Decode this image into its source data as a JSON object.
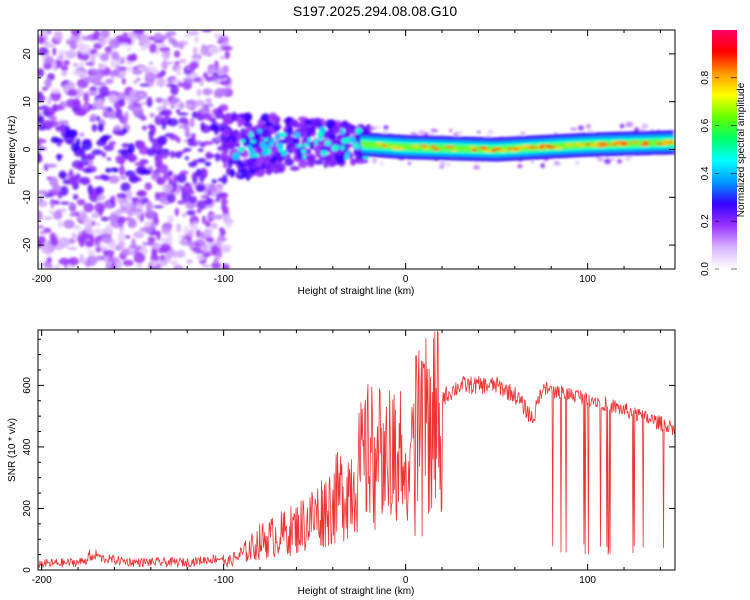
{
  "title": "S197.2025.294.08.08.G10",
  "chart_data": [
    {
      "type": "heatmap",
      "xlabel": "Height of straight line (km)",
      "ylabel": "Frequency (Hz)",
      "xlim": [
        -202,
        148
      ],
      "ylim": [
        -25,
        25
      ],
      "xticks": [
        -200,
        -100,
        0,
        100
      ],
      "yticks": [
        -20,
        -10,
        0,
        10,
        20
      ],
      "colorbar": {
        "label": "Normalized spectral amplitude",
        "ticks": [
          0.0,
          0.2,
          0.4,
          0.6,
          0.8
        ],
        "range": [
          0,
          1
        ],
        "colors": [
          "#ffffff",
          "#d9b3ff",
          "#9933ff",
          "#3300ff",
          "#0099ff",
          "#00ffff",
          "#00ff66",
          "#66ff00",
          "#ffff00",
          "#ff9900",
          "#ff0000",
          "#ff0066"
        ]
      },
      "ridge": [
        {
          "height": -100,
          "freq": 0.5
        },
        {
          "height": -50,
          "freq": 1.5
        },
        {
          "height": -20,
          "freq": 1.0
        },
        {
          "height": 0,
          "freq": 0.5
        },
        {
          "height": 50,
          "freq": 0.0
        },
        {
          "height": 100,
          "freq": 1.0
        },
        {
          "height": 148,
          "freq": 1.5
        }
      ]
    },
    {
      "type": "line",
      "xlabel": "Height of straight line (km)",
      "ylabel": "SNR (10 * v/v)",
      "xlim": [
        -202,
        148
      ],
      "ylim": [
        0,
        780
      ],
      "xticks": [
        -200,
        -100,
        0,
        100
      ],
      "yticks": [
        0,
        200,
        400,
        600
      ],
      "color": "#ee3333",
      "series": [
        {
          "x": -202,
          "y": 20
        },
        {
          "x": -180,
          "y": 25
        },
        {
          "x": -170,
          "y": 40
        },
        {
          "x": -150,
          "y": 25
        },
        {
          "x": -120,
          "y": 25
        },
        {
          "x": -100,
          "y": 40
        },
        {
          "x": -90,
          "y": 90
        },
        {
          "x": -80,
          "y": 150
        },
        {
          "x": -60,
          "y": 180
        },
        {
          "x": -40,
          "y": 250
        },
        {
          "x": -30,
          "y": 300
        },
        {
          "x": -20,
          "y": 380
        },
        {
          "x": -10,
          "y": 350
        },
        {
          "x": 0,
          "y": 430
        },
        {
          "x": 10,
          "y": 450
        },
        {
          "x": 20,
          "y": 560
        },
        {
          "x": 30,
          "y": 600
        },
        {
          "x": 50,
          "y": 600
        },
        {
          "x": 60,
          "y": 570
        },
        {
          "x": 70,
          "y": 490
        },
        {
          "x": 75,
          "y": 590
        },
        {
          "x": 100,
          "y": 560
        },
        {
          "x": 120,
          "y": 520
        },
        {
          "x": 148,
          "y": 460
        }
      ]
    }
  ]
}
